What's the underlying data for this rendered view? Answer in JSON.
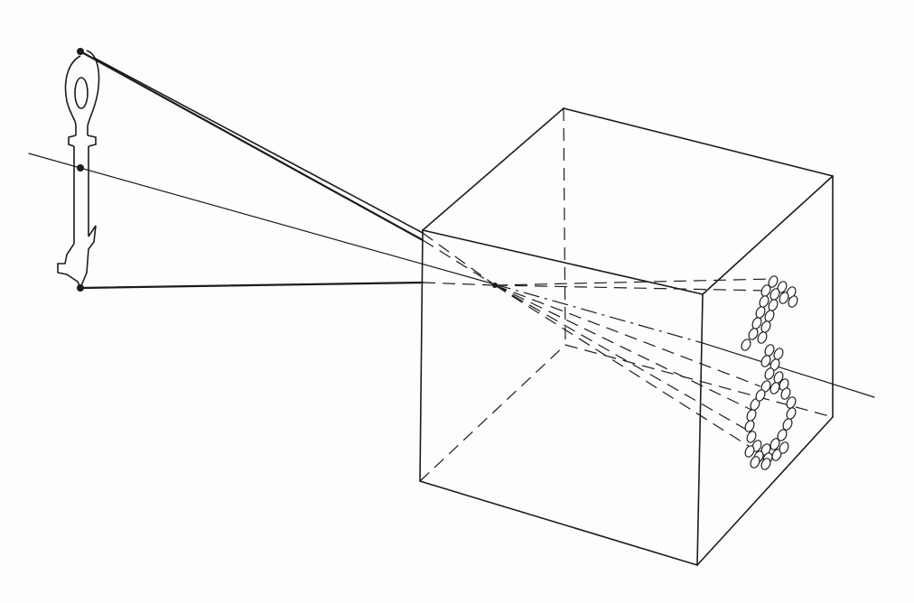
{
  "colors": {
    "background": "#fdfdfd",
    "ink": "#1c1c1c"
  },
  "figure": {
    "subject": "camera-obscura",
    "object_shape": "key",
    "image_shape": "inverted-key-on-back-wall",
    "projection_point": "pinhole-on-front-face",
    "optical_axis": "dash-dot-through-pinhole"
  }
}
